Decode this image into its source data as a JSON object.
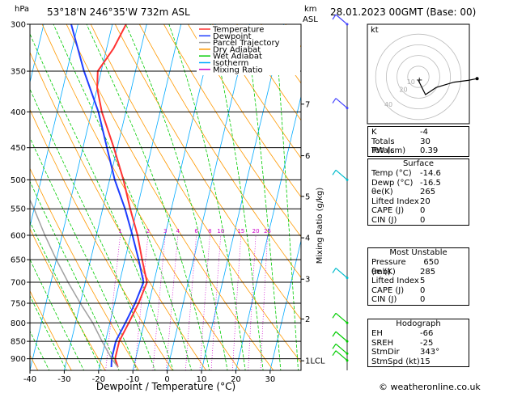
{
  "header": {
    "location": "53°18'N  246°35'W  732m  ASL",
    "datetime": "28.01.2023  00GMT  (Base: 00)",
    "hpa_label": "hPa",
    "km_label": "km",
    "asl_label": "ASL"
  },
  "chart_data": {
    "type": "line",
    "title": "",
    "xlabel": "Dewpoint / Temperature (°C)",
    "ylabel": "hPa",
    "right_ylabel": "Mixing Ratio (g/kg)",
    "x_ticks": [
      "-40",
      "-30",
      "-20",
      "-10",
      "0",
      "10",
      "20",
      "30"
    ],
    "x_tick_values": [
      -40,
      -30,
      -20,
      -10,
      0,
      10,
      20,
      30
    ],
    "xlim": [
      -40,
      39
    ],
    "y_log_scale": true,
    "ylim": [
      935,
      300
    ],
    "pressure_levels": [
      300,
      350,
      400,
      450,
      500,
      550,
      600,
      650,
      700,
      750,
      800,
      850,
      900
    ],
    "pressure_labels": [
      "300",
      "350",
      "400",
      "450",
      "500",
      "550",
      "600",
      "650",
      "700",
      "750",
      "800",
      "850",
      "900"
    ],
    "km_levels": [
      {
        "label": "7",
        "p": 390
      },
      {
        "label": "6",
        "p": 462
      },
      {
        "label": "5",
        "p": 528
      },
      {
        "label": "4",
        "p": 605
      },
      {
        "label": "3",
        "p": 693
      },
      {
        "label": "2",
        "p": 790
      },
      {
        "label": "1LCL",
        "p": 906
      }
    ],
    "mixing_ratio_labels": [
      "1",
      "2",
      "3",
      "4",
      "6",
      "8",
      "10",
      "15",
      "20",
      "25"
    ],
    "mixing_ratio_values": [
      1,
      2,
      3,
      4,
      6,
      8,
      10,
      15,
      20,
      25
    ],
    "skew_per_log_unit": 56,
    "legend": [
      {
        "label": "Temperature",
        "color": "#ff3333"
      },
      {
        "label": "Dewpoint",
        "color": "#1e3cff"
      },
      {
        "label": "Parcel Trajectory",
        "color": "#a0a0a0"
      },
      {
        "label": "Dry Adiabat",
        "color": "#ff9900"
      },
      {
        "label": "Wet Adiabat",
        "color": "#00cc00"
      },
      {
        "label": "Isotherm",
        "color": "#00aaff"
      },
      {
        "label": "Mixing Ratio",
        "color": "#cc00cc"
      }
    ],
    "legend_position": "top-right",
    "series": [
      {
        "name": "Temperature",
        "color": "#ff3333",
        "points": [
          [
            925,
            -14.6
          ],
          [
            900,
            -16
          ],
          [
            850,
            -16
          ],
          [
            800,
            -14.5
          ],
          [
            750,
            -13
          ],
          [
            700,
            -12
          ],
          [
            650,
            -15
          ],
          [
            600,
            -18
          ],
          [
            550,
            -22
          ],
          [
            500,
            -26
          ],
          [
            450,
            -31
          ],
          [
            400,
            -37
          ],
          [
            370,
            -40
          ],
          [
            350,
            -41
          ],
          [
            325,
            -38
          ],
          [
            300,
            -36
          ]
        ]
      },
      {
        "name": "Dewpoint",
        "color": "#1e3cff",
        "points": [
          [
            925,
            -16.5
          ],
          [
            900,
            -17
          ],
          [
            850,
            -17
          ],
          [
            800,
            -15.5
          ],
          [
            750,
            -14
          ],
          [
            700,
            -13
          ],
          [
            650,
            -16
          ],
          [
            600,
            -19.5
          ],
          [
            550,
            -23.5
          ],
          [
            500,
            -28.5
          ],
          [
            450,
            -33
          ],
          [
            400,
            -38
          ],
          [
            350,
            -45
          ],
          [
            300,
            -52
          ]
        ]
      },
      {
        "name": "Parcel Trajectory",
        "color": "#a0a0a0",
        "points": [
          [
            925,
            -14.6
          ],
          [
            900,
            -17
          ],
          [
            850,
            -21
          ],
          [
            800,
            -25
          ],
          [
            750,
            -30
          ],
          [
            700,
            -35
          ],
          [
            650,
            -40
          ],
          [
            600,
            -45
          ],
          [
            550,
            -50
          ],
          [
            500,
            -56
          ],
          [
            450,
            -62
          ],
          [
            400,
            -68
          ]
        ]
      }
    ],
    "wind_barb_color": "#00cc00",
    "wind_barb_color_upper": "#4444ff"
  },
  "hodograph": {
    "unit_label": "kt",
    "ring_labels": [
      "40",
      "20",
      "10"
    ],
    "storm_marker": "+",
    "ring_speeds": [
      10,
      20,
      30,
      40
    ],
    "points_kt": [
      [
        0,
        -2
      ],
      [
        2,
        -6
      ],
      [
        4,
        -10
      ],
      [
        10,
        -6
      ],
      [
        20,
        -3
      ],
      [
        28,
        -2
      ],
      [
        33,
        -1
      ]
    ]
  },
  "indices": {
    "rows": [
      {
        "label": "K",
        "value": "-4"
      },
      {
        "label": "Totals Totals",
        "value": "30"
      },
      {
        "label": "PW (cm)",
        "value": "0.39"
      }
    ]
  },
  "surface": {
    "title": "Surface",
    "rows": [
      {
        "label": "Temp (°C)",
        "value": "-14.6"
      },
      {
        "label": "Dewp (°C)",
        "value": "-16.5"
      },
      {
        "label": "θe(K)",
        "value": "265"
      },
      {
        "label": "Lifted Index",
        "value": "20"
      },
      {
        "label": "CAPE (J)",
        "value": "0"
      },
      {
        "label": "CIN (J)",
        "value": "0"
      }
    ]
  },
  "most_unstable": {
    "title": "Most Unstable",
    "rows": [
      {
        "label": "Pressure (mb)",
        "value": "650"
      },
      {
        "label": "θe (K)",
        "value": "285"
      },
      {
        "label": "Lifted Index",
        "value": "5"
      },
      {
        "label": "CAPE (J)",
        "value": "0"
      },
      {
        "label": "CIN (J)",
        "value": "0"
      }
    ]
  },
  "hodograph_stats": {
    "title": "Hodograph",
    "rows": [
      {
        "label": "EH",
        "value": "-66"
      },
      {
        "label": "SREH",
        "value": "-25"
      },
      {
        "label": "StmDir",
        "value": "343°"
      },
      {
        "label": "StmSpd (kt)",
        "value": "15"
      }
    ]
  },
  "footer": {
    "copyright": "© weatheronline.co.uk"
  }
}
